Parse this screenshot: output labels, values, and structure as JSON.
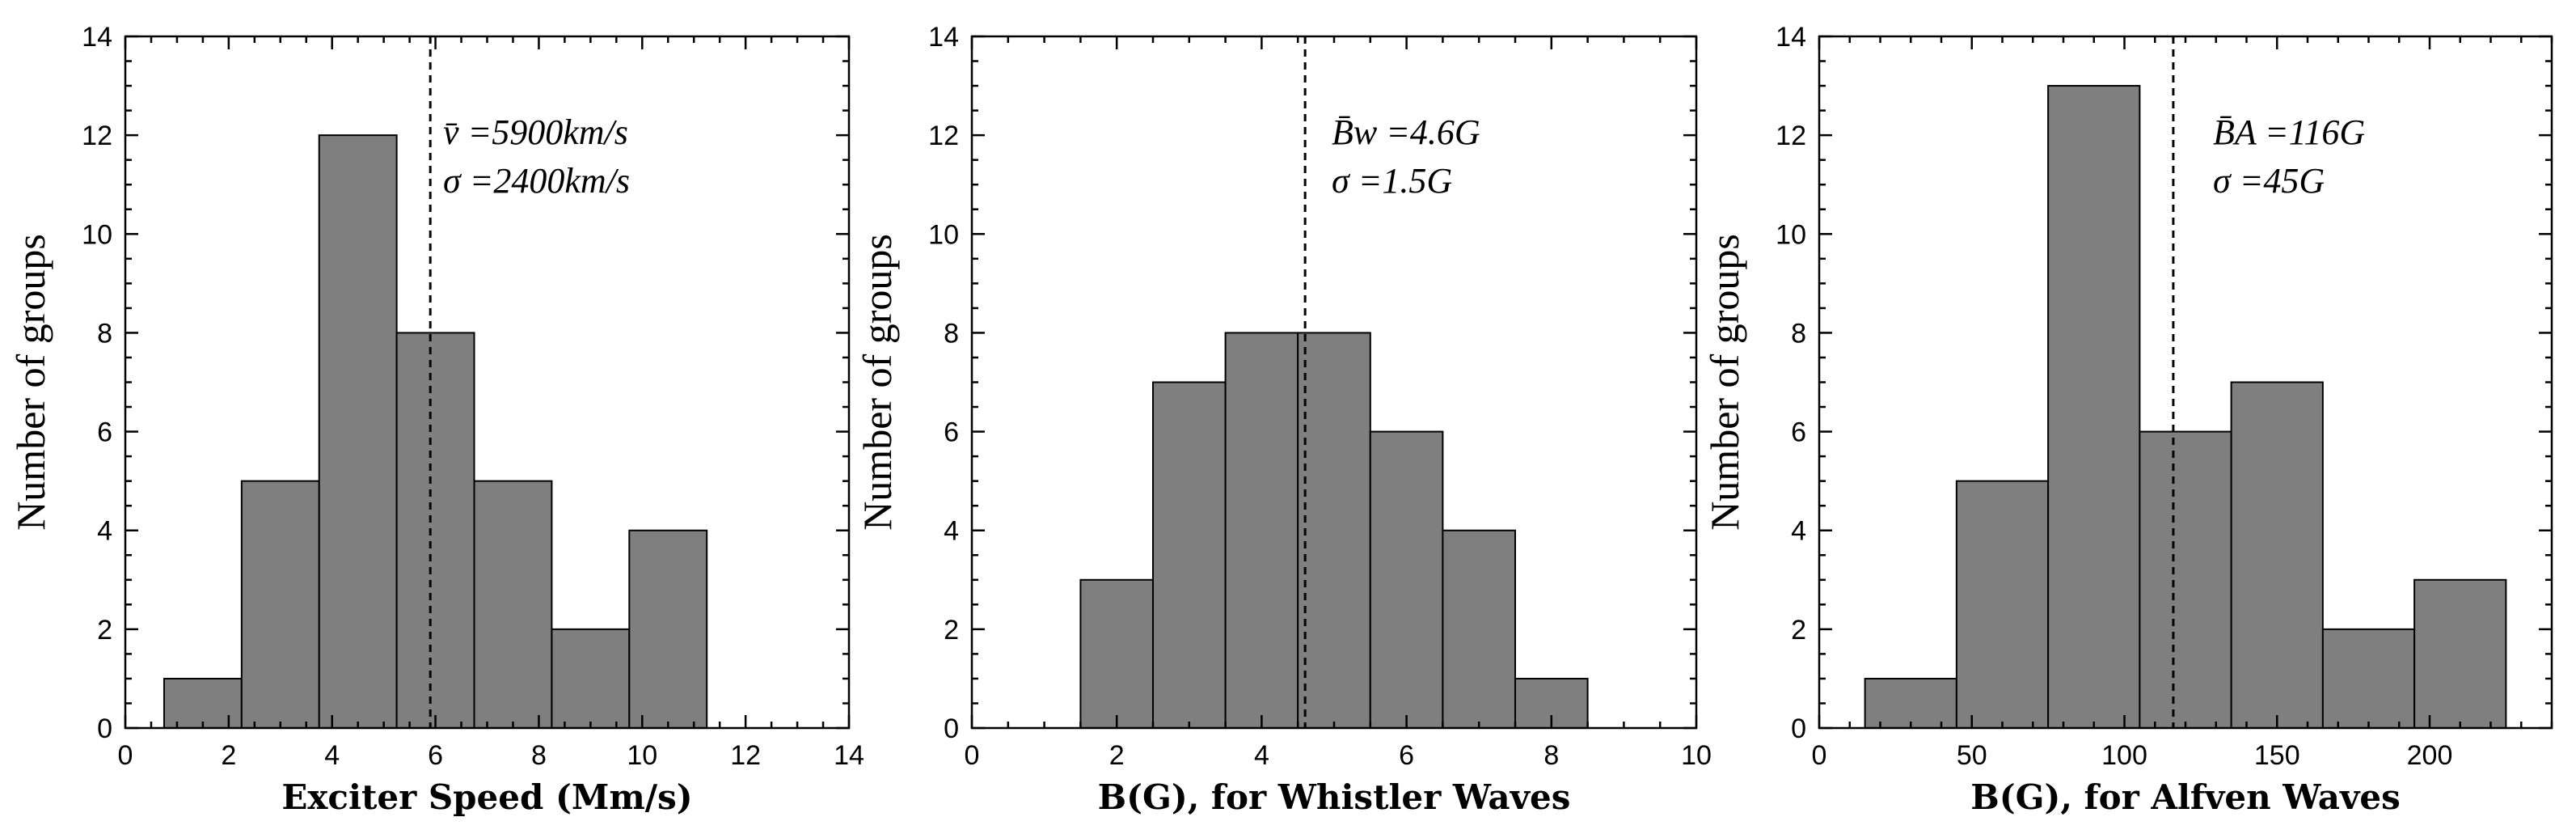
{
  "chart_data": [
    {
      "type": "bar",
      "title": "",
      "xlabel": "Exciter Speed (Mm/s)",
      "ylabel": "Number of groups",
      "xlim": [
        0,
        14
      ],
      "ylim": [
        0,
        14
      ],
      "xticks": [
        0,
        2,
        4,
        6,
        8,
        10,
        12,
        14
      ],
      "yticks": [
        0,
        2,
        4,
        6,
        8,
        10,
        12,
        14
      ],
      "bins": [
        [
          0.75,
          2.25
        ],
        [
          2.25,
          3.75
        ],
        [
          3.75,
          5.25
        ],
        [
          5.25,
          6.75
        ],
        [
          6.75,
          8.25
        ],
        [
          8.25,
          9.75
        ],
        [
          9.75,
          11.25
        ]
      ],
      "values": [
        1,
        5,
        12,
        8,
        5,
        2,
        4
      ],
      "mean_line": 5.9,
      "annotations": [
        "v̄ =5900km/s",
        "σ =2400km/s"
      ]
    },
    {
      "type": "bar",
      "title": "",
      "xlabel": "B(G), for Whistler Waves",
      "ylabel": "Number of groups",
      "xlim": [
        0,
        10
      ],
      "ylim": [
        0,
        14
      ],
      "xticks": [
        0,
        2,
        4,
        6,
        8,
        10
      ],
      "yticks": [
        0,
        2,
        4,
        6,
        8,
        10,
        12,
        14
      ],
      "bins": [
        [
          1.5,
          2.5
        ],
        [
          2.5,
          3.5
        ],
        [
          3.5,
          4.5
        ],
        [
          4.5,
          5.5
        ],
        [
          5.5,
          6.5
        ],
        [
          6.5,
          7.5
        ],
        [
          7.5,
          8.5
        ]
      ],
      "values": [
        3,
        7,
        8,
        8,
        6,
        4,
        1
      ],
      "mean_line": 4.6,
      "annotations": [
        "B̄w =4.6G",
        "σ =1.5G"
      ]
    },
    {
      "type": "bar",
      "title": "",
      "xlabel": "B(G), for Alfven Waves",
      "ylabel": "Number of groups",
      "xlim": [
        0,
        240
      ],
      "ylim": [
        0,
        14
      ],
      "xticks": [
        0,
        50,
        100,
        150,
        200
      ],
      "yticks": [
        0,
        2,
        4,
        6,
        8,
        10,
        12,
        14
      ],
      "bins": [
        [
          15,
          45
        ],
        [
          45,
          75
        ],
        [
          75,
          105
        ],
        [
          105,
          135
        ],
        [
          135,
          165
        ],
        [
          165,
          195
        ],
        [
          195,
          225
        ]
      ],
      "values": [
        1,
        5,
        13,
        6,
        7,
        2,
        3
      ],
      "mean_line": 116,
      "annotations": [
        "B̄A =116G",
        "σ =45G"
      ]
    }
  ]
}
